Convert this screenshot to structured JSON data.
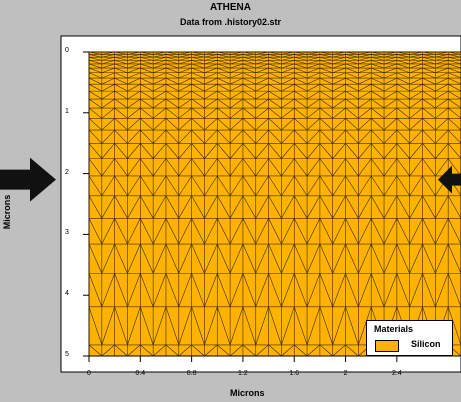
{
  "chart_data": {
    "type": "mesh",
    "title": "ATHENA",
    "subtitle": "Data from .history02.str",
    "xlabel": "Microns",
    "ylabel": "Microns",
    "xlim": [
      0,
      2.9
    ],
    "ylim": [
      0,
      5
    ],
    "y_inverted": true,
    "x_ticks": [
      "0",
      "0.4",
      "0.8",
      "1.2",
      "1.6",
      "2",
      "2.4"
    ],
    "x_tick_values": [
      0,
      0.4,
      0.8,
      1.2,
      1.6,
      2,
      2.4
    ],
    "y_ticks": [
      "0",
      "1",
      "2",
      "3",
      "4",
      "5"
    ],
    "y_tick_values": [
      0,
      1,
      2,
      3,
      4,
      5
    ],
    "legend_title": "Materials",
    "materials": [
      {
        "name": "Silicon",
        "color": "#ffb300"
      }
    ],
    "mesh_color": "#3a2a00",
    "annotations": [
      {
        "type": "arrow",
        "direction": "right",
        "y": 2.1
      },
      {
        "type": "arrow",
        "direction": "left",
        "y": 2.1
      }
    ]
  }
}
